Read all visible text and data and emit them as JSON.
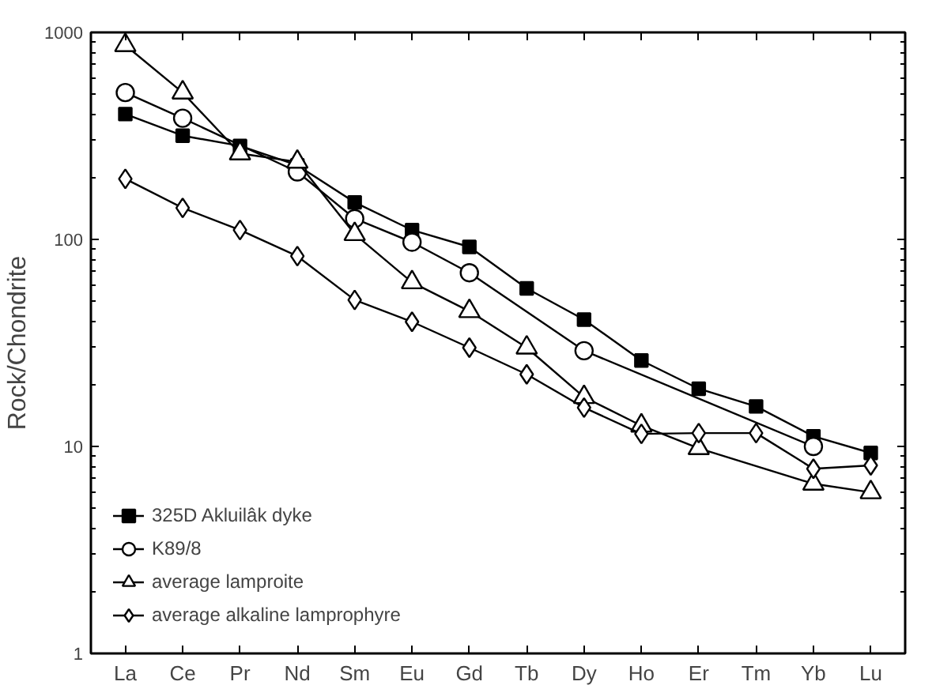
{
  "chart_data": {
    "type": "line",
    "ylabel": "Rock/Chondrite",
    "categories": [
      "La",
      "Ce",
      "Pr",
      "Nd",
      "Sm",
      "Eu",
      "Gd",
      "Tb",
      "Dy",
      "Ho",
      "Er",
      "Tm",
      "Yb",
      "Lu"
    ],
    "log": true,
    "ylim": [
      1,
      1000
    ],
    "yticks": [
      1,
      10,
      100,
      1000
    ],
    "legend": "bottom left",
    "grid": false,
    "series": [
      {
        "name": "325D Akluilâk dyke",
        "color": "#000000",
        "marker": "square",
        "values": [
          403,
          317,
          283,
          228,
          151,
          111,
          92,
          58,
          41,
          26,
          19,
          15.6,
          11.2,
          9.3
        ]
      },
      {
        "name": "K89/8",
        "color": "#000000",
        "marker": "circle",
        "values": [
          512,
          385,
          null,
          212,
          126,
          97,
          69,
          null,
          29,
          null,
          null,
          null,
          10,
          null
        ]
      },
      {
        "name": "average lamproite",
        "color": "#000000",
        "marker": "triangle",
        "values": [
          867,
          512,
          260,
          237,
          106,
          62,
          45,
          30,
          17.3,
          12.6,
          9.8,
          null,
          6.6,
          6.0
        ]
      },
      {
        "name": "average alkaline lamprophyre",
        "color": "#000000",
        "marker": "diamond",
        "values": [
          196,
          142,
          111,
          83,
          51,
          40,
          30,
          22.3,
          15.4,
          11.5,
          11.6,
          11.6,
          7.8,
          8.1
        ]
      }
    ]
  }
}
